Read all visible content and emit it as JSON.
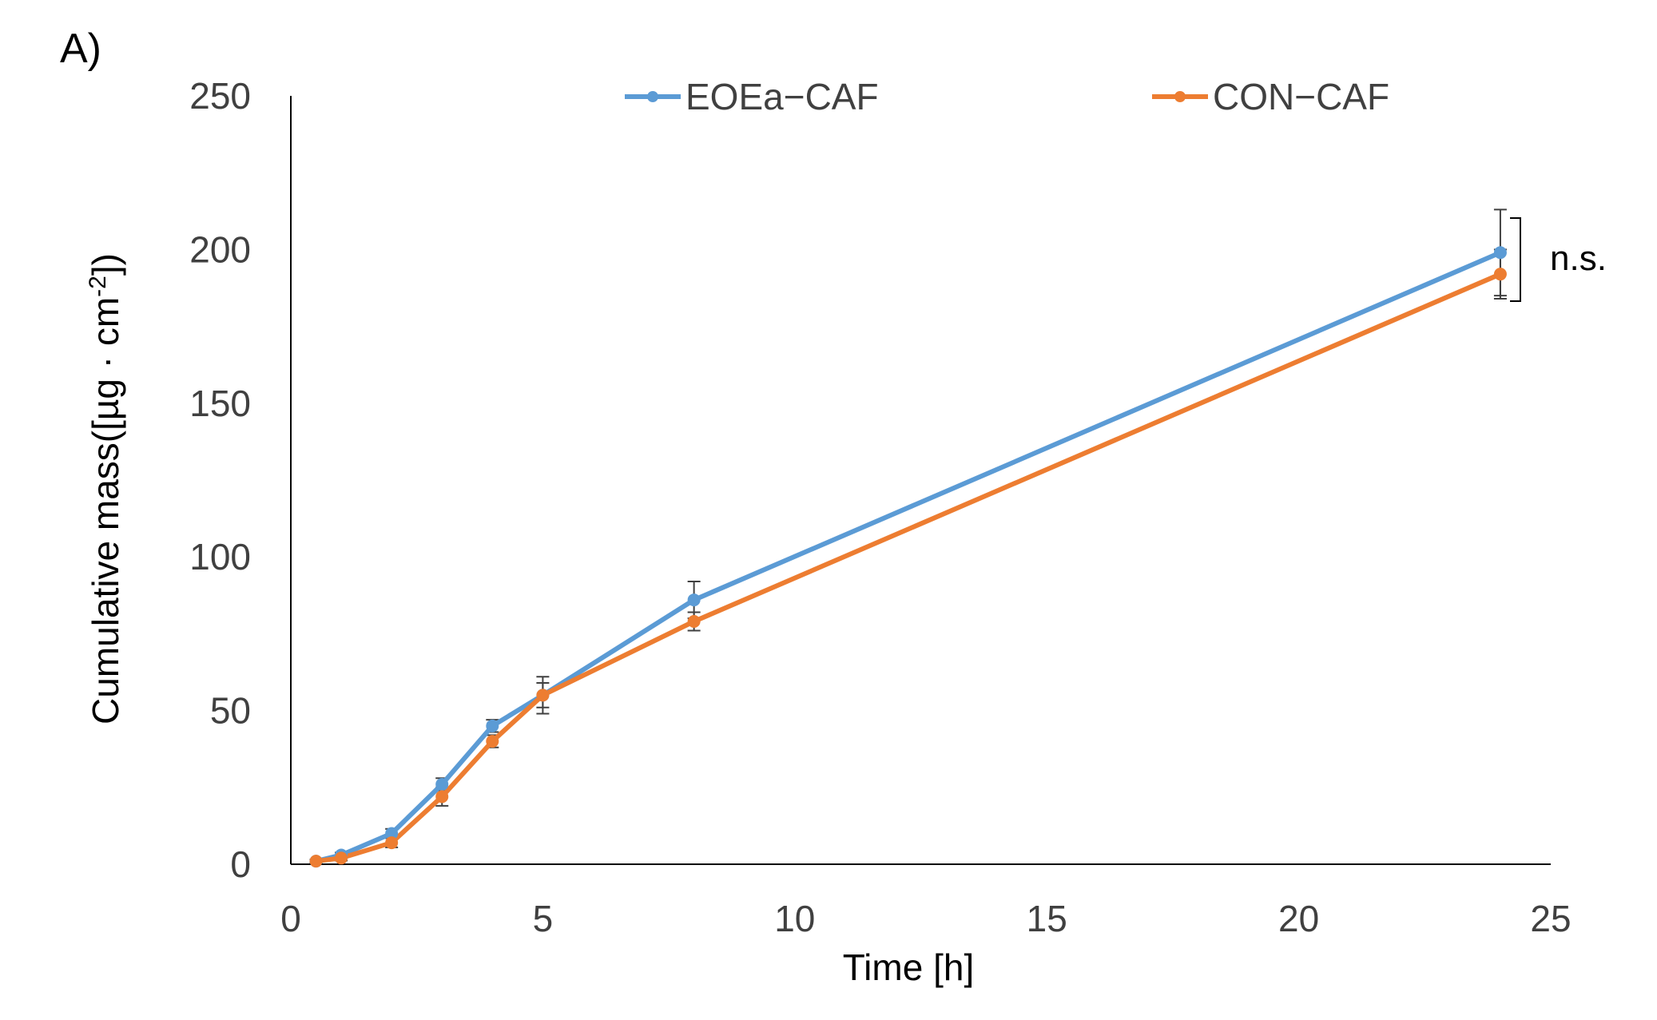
{
  "panel_label": "A)",
  "chart_data": {
    "type": "line",
    "title": "",
    "xlabel": "Time [h]",
    "ylabel_main": "Cumulative mass([µg · cm",
    "ylabel_sup": "-2",
    "ylabel_close": "])",
    "xlim": [
      0,
      25
    ],
    "ylim": [
      0,
      250
    ],
    "xticks": [
      0,
      5,
      10,
      15,
      20,
      25
    ],
    "yticks": [
      0,
      50,
      100,
      150,
      200,
      250
    ],
    "grid": false,
    "legend_position": "top",
    "x": [
      0.5,
      1,
      2,
      3,
      4,
      5,
      8,
      24
    ],
    "series": [
      {
        "name": "EOEa−CAF",
        "color": "#5B9BD5",
        "values": [
          1,
          3,
          10,
          26,
          45,
          55,
          86,
          199
        ],
        "errors": [
          0.5,
          0.8,
          1.5,
          2,
          2,
          6,
          6,
          14
        ]
      },
      {
        "name": "CON−CAF",
        "color": "#ED7D31",
        "values": [
          1,
          2,
          7,
          22,
          40,
          55,
          79,
          192
        ],
        "errors": [
          0.5,
          0.8,
          1.5,
          3,
          2,
          4,
          3,
          8
        ]
      }
    ],
    "annotation": "n.s."
  }
}
